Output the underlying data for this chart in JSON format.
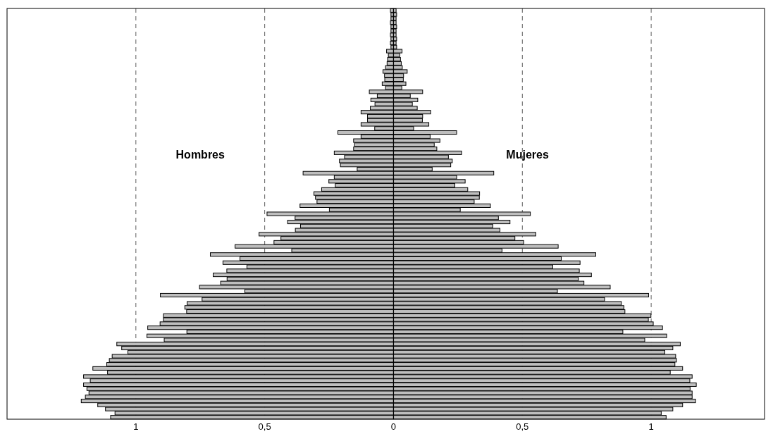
{
  "chart_data": {
    "type": "bar",
    "orientation": "horizontal",
    "stacked": true,
    "grid": "x",
    "line_style": "dashed",
    "annotations": [
      "Hombres",
      "Mujeres"
    ],
    "categories": [
      null,
      null,
      null,
      null,
      null,
      null,
      null,
      null,
      null,
      null,
      null,
      null,
      null,
      null,
      null,
      null,
      null,
      null,
      null,
      null,
      null,
      null,
      null,
      null,
      null,
      null,
      null,
      null,
      null,
      null,
      null,
      null,
      null,
      null,
      null,
      null,
      null,
      null,
      null,
      null,
      null,
      null,
      null,
      null,
      null,
      null,
      null,
      null,
      null,
      null,
      null,
      null,
      null,
      null,
      null,
      null,
      null,
      null,
      null,
      null,
      null,
      null,
      null,
      null,
      null,
      null,
      null,
      null,
      null,
      null,
      null,
      null,
      null,
      null,
      null,
      null,
      null,
      null,
      null,
      null,
      null,
      null,
      null,
      null,
      null,
      null,
      null,
      null,
      null,
      null,
      null,
      null,
      null,
      null,
      null,
      null,
      null,
      null,
      null,
      null,
      null
    ],
    "xlim": [
      -1.5,
      1.44
    ],
    "xticks": [
      {
        "value": -1,
        "label": "1"
      },
      {
        "value": -0.5,
        "label": "0,5"
      },
      0,
      {
        "value": 0.5,
        "label": "0,5"
      },
      1
    ],
    "series": [
      {
        "color": "#bebebe",
        "values": [
          -0.012,
          -0.01,
          -0.01,
          -0.012,
          -0.01,
          -0.01,
          -0.012,
          -0.01,
          -0.012,
          -0.01,
          -0.027,
          -0.02,
          -0.023,
          -0.025,
          -0.031,
          -0.041,
          -0.035,
          -0.034,
          -0.044,
          -0.031,
          -0.094,
          -0.063,
          -0.088,
          -0.072,
          -0.09,
          -0.126,
          -0.101,
          -0.101,
          -0.126,
          -0.073,
          -0.216,
          -0.126,
          -0.155,
          -0.151,
          -0.155,
          -0.23,
          -0.19,
          -0.21,
          -0.206,
          -0.141,
          -0.351,
          -0.23,
          -0.251,
          -0.226,
          -0.279,
          -0.309,
          -0.303,
          -0.297,
          -0.363,
          -0.249,
          -0.491,
          -0.382,
          -0.411,
          -0.361,
          -0.381,
          -0.522,
          -0.437,
          -0.464,
          -0.615,
          -0.395,
          -0.711,
          -0.596,
          -0.662,
          -0.569,
          -0.647,
          -0.7,
          -0.646,
          -0.671,
          -0.753,
          -0.577,
          -0.905,
          -0.743,
          -0.801,
          -0.81,
          -0.803,
          -0.893,
          -0.893,
          -0.906,
          -0.954,
          -0.802,
          -0.957,
          -0.89,
          -1.074,
          -1.055,
          -1.031,
          -1.092,
          -1.103,
          -1.113,
          -1.167,
          -1.11,
          -1.203,
          -1.177,
          -1.203,
          -1.19,
          -1.182,
          -1.196,
          -1.212,
          -1.148,
          -1.118,
          -1.081,
          -1.098
        ]
      },
      {
        "color": "#bebebe",
        "values": [
          0.01,
          0.012,
          0.01,
          0.01,
          0.012,
          0.01,
          0.01,
          0.012,
          0.01,
          0.012,
          0.033,
          0.024,
          0.027,
          0.03,
          0.034,
          0.053,
          0.039,
          0.038,
          0.048,
          0.032,
          0.113,
          0.065,
          0.094,
          0.073,
          0.092,
          0.144,
          0.113,
          0.112,
          0.137,
          0.078,
          0.245,
          0.142,
          0.18,
          0.158,
          0.168,
          0.264,
          0.213,
          0.228,
          0.222,
          0.15,
          0.389,
          0.245,
          0.278,
          0.238,
          0.288,
          0.334,
          0.333,
          0.313,
          0.376,
          0.259,
          0.531,
          0.407,
          0.452,
          0.385,
          0.413,
          0.552,
          0.471,
          0.505,
          0.639,
          0.421,
          0.785,
          0.651,
          0.724,
          0.618,
          0.721,
          0.768,
          0.717,
          0.739,
          0.841,
          0.636,
          0.99,
          0.819,
          0.884,
          0.894,
          0.898,
          0.999,
          0.989,
          1.008,
          1.044,
          0.89,
          1.06,
          0.975,
          1.113,
          1.084,
          1.053,
          1.095,
          1.098,
          1.092,
          1.122,
          1.074,
          1.159,
          1.15,
          1.175,
          1.151,
          1.159,
          1.159,
          1.172,
          1.122,
          1.084,
          1.039,
          1.058
        ]
      }
    ]
  }
}
